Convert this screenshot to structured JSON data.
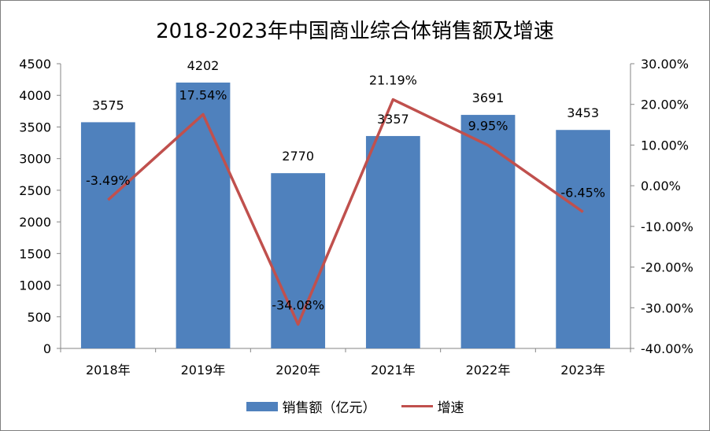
{
  "chart_data": {
    "type": "bar",
    "title": "2018-2023年中国商业综合体销售额及增速",
    "categories": [
      "2018年",
      "2019年",
      "2020年",
      "2021年",
      "2022年",
      "2023年"
    ],
    "series": [
      {
        "name": "销售额（亿元）",
        "type": "bar",
        "axis": "left",
        "color": "#4f81bd",
        "values": [
          3575,
          4202,
          2770,
          3357,
          3691,
          3453
        ],
        "labels": [
          "3575",
          "4202",
          "2770",
          "3357",
          "3691",
          "3453"
        ]
      },
      {
        "name": "增速",
        "type": "line",
        "axis": "right",
        "color": "#c0504d",
        "values": [
          -3.49,
          17.54,
          -34.08,
          21.19,
          9.95,
          -6.45
        ],
        "labels": [
          "-3.49%",
          "17.54%",
          "-34.08%",
          "21.19%",
          "9.95%",
          "-6.45%"
        ]
      }
    ],
    "y_left": {
      "ylim": [
        0,
        4500
      ],
      "ticks": [
        "4500",
        "4000",
        "3500",
        "3000",
        "2500",
        "2000",
        "1500",
        "1000",
        "500",
        "0"
      ]
    },
    "y_right": {
      "ylim": [
        -40,
        30
      ],
      "ticks": [
        "30.00%",
        "20.00%",
        "10.00%",
        "0.00%",
        "-10.00%",
        "-20.00%",
        "-30.00%",
        "-40.00%"
      ]
    },
    "legend_position": "bottom",
    "grid": false
  }
}
